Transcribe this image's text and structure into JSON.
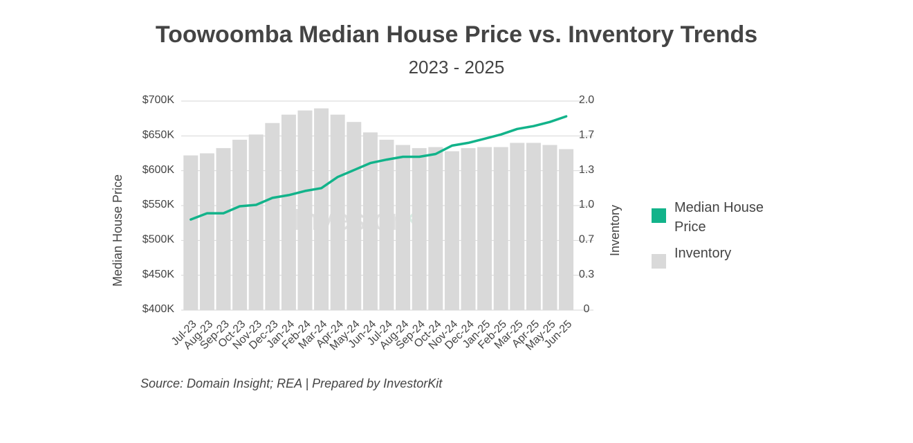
{
  "chart_data": {
    "type": "combo",
    "title": "Toowoomba Median House Price vs. Inventory Trends",
    "subtitle": "2023 - 2025",
    "y_label": "Median House Price",
    "y2_label": "Inventory",
    "source": "Source: Domain Insight; REA | Prepared by InvestorKit",
    "watermark": [
      "Investor",
      "Kit"
    ],
    "categories": [
      "Jul-23",
      "Aug-23",
      "Sep-23",
      "Oct-23",
      "Nov-23",
      "Dec-23",
      "Jan-24",
      "Feb-24",
      "Mar-24",
      "Apr-24",
      "May-24",
      "Jun-24",
      "Jul-24",
      "Aug-24",
      "Sep-24",
      "Oct-24",
      "Nov-24",
      "Dec-24",
      "Jan-25",
      "Feb-25",
      "Mar-25",
      "Apr-25",
      "May-25",
      "Jun-25"
    ],
    "series": [
      {
        "name": "Median House Price",
        "type": "line",
        "color": "#12b38a",
        "values": [
          530000,
          539000,
          539000,
          549000,
          551000,
          561000,
          565000,
          571000,
          575000,
          591000,
          601000,
          611000,
          616000,
          620000,
          620000,
          624000,
          636000,
          640000,
          646000,
          652000,
          660000,
          664000,
          670000,
          678000
        ]
      },
      {
        "name": "Inventory",
        "type": "bar",
        "axis": "y2",
        "color": "#d9d9d9",
        "values": [
          1.48,
          1.5,
          1.55,
          1.63,
          1.68,
          1.79,
          1.87,
          1.91,
          1.93,
          1.87,
          1.8,
          1.7,
          1.63,
          1.58,
          1.55,
          1.56,
          1.52,
          1.55,
          1.56,
          1.56,
          1.6,
          1.6,
          1.58,
          1.54
        ]
      }
    ],
    "ylim": [
      400000,
      700000
    ],
    "yticks": [
      {
        "value": 400000,
        "label": "$400K"
      },
      {
        "value": 450000,
        "label": "$450K"
      },
      {
        "value": 500000,
        "label": "$500K"
      },
      {
        "value": 550000,
        "label": "$550K"
      },
      {
        "value": 600000,
        "label": "$600K"
      },
      {
        "value": 650000,
        "label": "$650K"
      },
      {
        "value": 700000,
        "label": "$700K"
      }
    ],
    "y2lim": [
      0,
      2.0
    ],
    "y2ticks": [
      0,
      {
        "value": 0.333,
        "label": "0.3"
      },
      {
        "value": 0.667,
        "label": "0.7"
      },
      {
        "value": 1.0,
        "label": "1.0"
      },
      {
        "value": 1.333,
        "label": "1.3"
      },
      {
        "value": 1.667,
        "label": "1.7"
      },
      {
        "value": 2.0,
        "label": "2.0"
      }
    ],
    "grid": true
  }
}
